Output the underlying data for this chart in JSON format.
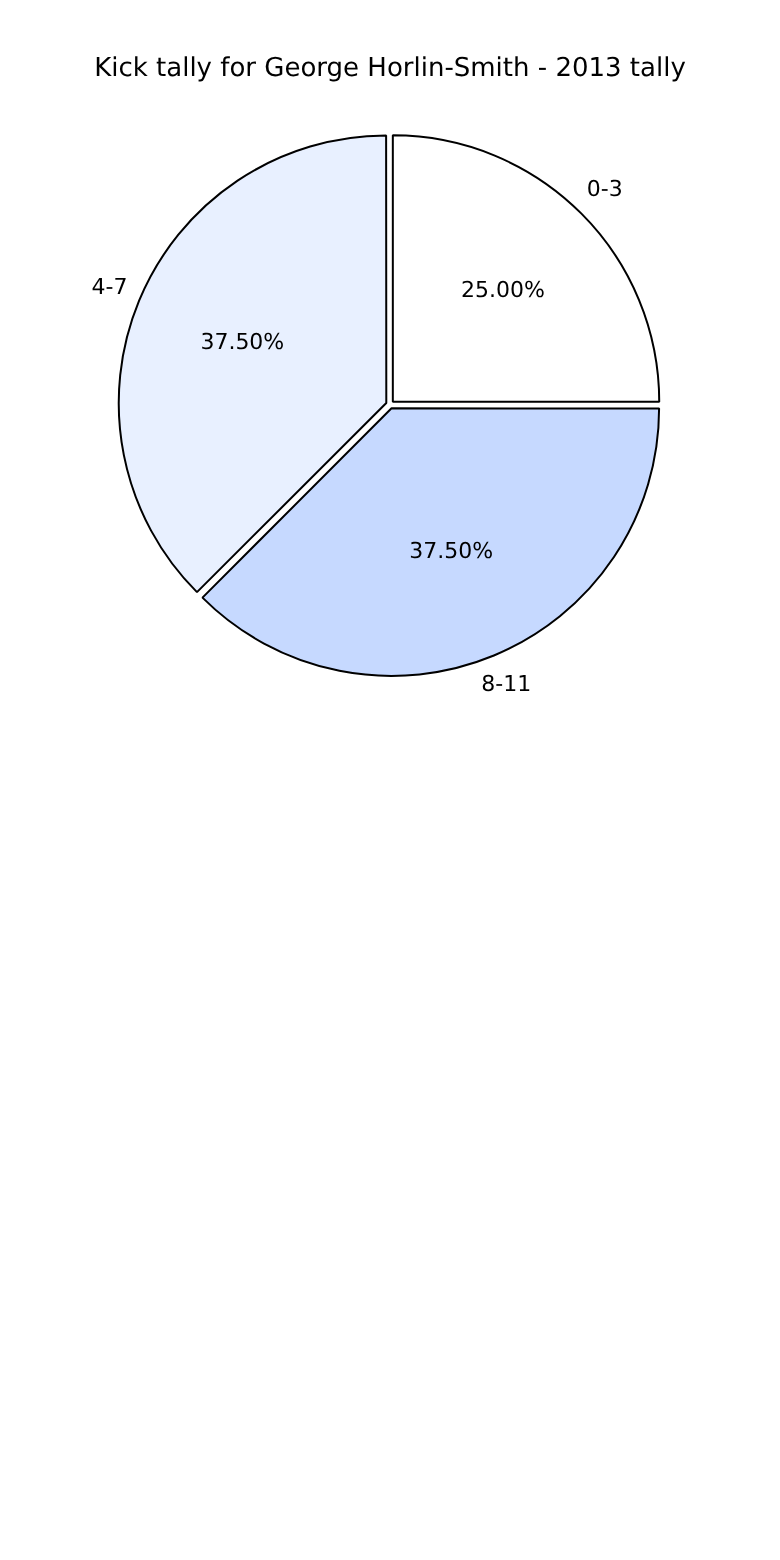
{
  "chart_data": {
    "type": "pie",
    "title": "Kick tally for George Horlin-Smith - 2013 tally",
    "categories": [
      "0-3",
      "8-11",
      "4-7"
    ],
    "values": [
      25,
      37.5,
      37.5
    ],
    "value_labels": [
      "25.00%",
      "37.50%",
      "37.50%"
    ],
    "colors": [
      "#ffffff",
      "#c6d9ff",
      "#e8f0ff"
    ],
    "legend": false
  }
}
